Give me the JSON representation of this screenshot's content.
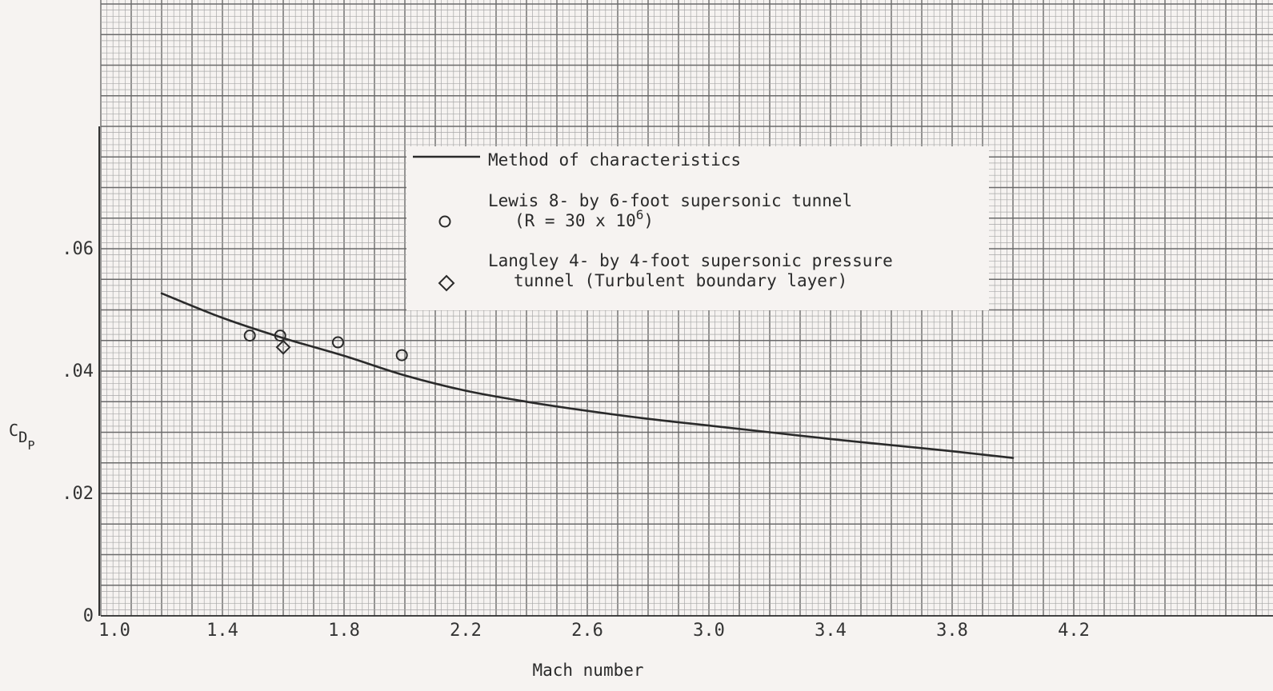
{
  "chart_data": {
    "type": "line",
    "title": "",
    "xlabel": "Mach number",
    "ylabel": {
      "main": "C",
      "sub1": "D",
      "sub2": "P"
    },
    "xlim": [
      1.0,
      4.6
    ],
    "ylim": [
      0,
      0.06
    ],
    "x_ticks": [
      1.0,
      1.4,
      1.8,
      2.2,
      2.6,
      3.0,
      3.4,
      3.8,
      4.2
    ],
    "x_tick_labels": [
      "1.0",
      "1.4",
      "1.8",
      "2.2",
      "2.6",
      "3.0",
      "3.4",
      "3.8",
      "4.2"
    ],
    "y_ticks": [
      0,
      0.02,
      0.04,
      0.06
    ],
    "y_tick_labels": [
      "0",
      ".02",
      ".04",
      ".06"
    ],
    "grid": true,
    "legend_position": "top-center",
    "series": [
      {
        "name": "Method of characteristics",
        "kind": "line",
        "x": [
          1.2,
          1.4,
          1.6,
          1.8,
          2.0,
          2.2,
          2.4,
          2.6,
          2.8,
          3.0,
          3.2,
          3.4,
          3.6,
          3.8,
          4.0
        ],
        "y": [
          0.0527,
          0.0487,
          0.0454,
          0.0425,
          0.0393,
          0.0368,
          0.035,
          0.0335,
          0.0322,
          0.0311,
          0.03,
          0.0289,
          0.0279,
          0.0269,
          0.0258
        ]
      },
      {
        "name": "Lewis 8- by 6-foot supersonic tunnel",
        "name_line2": "(R = 30 x 10",
        "name_sup": "6",
        "name_tail": ")",
        "kind": "circle",
        "x": [
          1.49,
          1.59,
          1.78,
          1.99
        ],
        "y": [
          0.0458,
          0.0458,
          0.0447,
          0.0426
        ]
      },
      {
        "name": "Langley 4- by 4-foot supersonic pressure",
        "name_line2": "tunnel (Turbulent boundary layer)",
        "kind": "diamond",
        "x": [
          1.6
        ],
        "y": [
          0.0439
        ]
      }
    ]
  }
}
